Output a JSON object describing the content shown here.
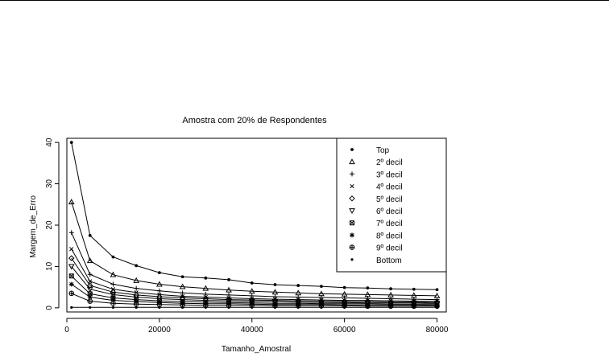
{
  "chart_data": {
    "type": "line",
    "title": "Amostra com 20% de Respondentes",
    "xlabel": "Tamanho_Amostral",
    "ylabel": "Margem_de_Erro",
    "xlim": [
      0,
      82000
    ],
    "ylim": [
      -1,
      41
    ],
    "xticks": [
      0,
      20000,
      40000,
      60000,
      80000
    ],
    "yticks": [
      0,
      10,
      20,
      30,
      40
    ],
    "xtick_labels": [
      "0",
      "20000",
      "40000",
      "60000",
      "80000"
    ],
    "ytick_labels": [
      "0",
      "10",
      "20",
      "30",
      "40"
    ],
    "grid": false,
    "legend_position": "top-right",
    "x": [
      1000,
      5000,
      10000,
      15000,
      20000,
      25000,
      30000,
      35000,
      40000,
      45000,
      50000,
      55000,
      60000,
      65000,
      70000,
      75000,
      80000
    ],
    "series": [
      {
        "name": "Top",
        "marker": "dot",
        "values": [
          40,
          17.5,
          12.3,
          10.2,
          8.5,
          7.5,
          7.2,
          6.8,
          6.0,
          5.6,
          5.4,
          5.2,
          4.9,
          4.8,
          4.6,
          4.5,
          4.4
        ]
      },
      {
        "name": "2º decil",
        "marker": "triangle-up",
        "values": [
          25.6,
          11.4,
          8.0,
          6.6,
          5.7,
          5.1,
          4.7,
          4.3,
          4.0,
          3.8,
          3.6,
          3.4,
          3.3,
          3.2,
          3.1,
          3.0,
          2.9
        ]
      },
      {
        "name": "3º decil",
        "marker": "plus",
        "values": [
          18.2,
          8.1,
          5.7,
          4.7,
          4.1,
          3.6,
          3.3,
          3.1,
          2.9,
          2.7,
          2.6,
          2.5,
          2.4,
          2.3,
          2.2,
          2.1,
          2.0
        ]
      },
      {
        "name": "4º decil",
        "marker": "x",
        "values": [
          14.2,
          6.4,
          4.5,
          3.7,
          3.2,
          2.8,
          2.6,
          2.4,
          2.2,
          2.1,
          2.0,
          1.9,
          1.8,
          1.8,
          1.7,
          1.6,
          1.6
        ]
      },
      {
        "name": "5º decil",
        "marker": "diamond",
        "values": [
          12.0,
          5.4,
          3.8,
          3.1,
          2.7,
          2.4,
          2.2,
          2.0,
          1.9,
          1.8,
          1.7,
          1.6,
          1.5,
          1.5,
          1.4,
          1.4,
          1.3
        ]
      },
      {
        "name": "6º decil",
        "marker": "triangle-down",
        "values": [
          10.0,
          4.5,
          3.2,
          2.6,
          2.2,
          2.0,
          1.8,
          1.7,
          1.6,
          1.5,
          1.4,
          1.3,
          1.3,
          1.2,
          1.2,
          1.2,
          1.1
        ]
      },
      {
        "name": "7º decil",
        "marker": "square-x",
        "values": [
          7.7,
          3.4,
          2.4,
          2.0,
          1.7,
          1.5,
          1.4,
          1.3,
          1.2,
          1.1,
          1.1,
          1.0,
          1.0,
          1.0,
          0.9,
          0.9,
          0.9
        ]
      },
      {
        "name": "8º decil",
        "marker": "star",
        "values": [
          5.7,
          2.6,
          1.8,
          1.5,
          1.3,
          1.1,
          1.0,
          1.0,
          0.9,
          0.8,
          0.8,
          0.8,
          0.7,
          0.7,
          0.7,
          0.7,
          0.6
        ]
      },
      {
        "name": "9º decil",
        "marker": "circle-plus",
        "values": [
          3.5,
          1.6,
          1.1,
          0.9,
          0.8,
          0.7,
          0.6,
          0.6,
          0.6,
          0.5,
          0.5,
          0.5,
          0.5,
          0.4,
          0.4,
          0.4,
          0.4
        ]
      },
      {
        "name": "Bottom",
        "marker": "small-dot",
        "values": [
          0.1,
          0.1,
          0.1,
          0.1,
          0.1,
          0.1,
          0.1,
          0.1,
          0.1,
          0.1,
          0.1,
          0.1,
          0.1,
          0.1,
          0.1,
          0.1,
          0.1
        ]
      }
    ]
  }
}
